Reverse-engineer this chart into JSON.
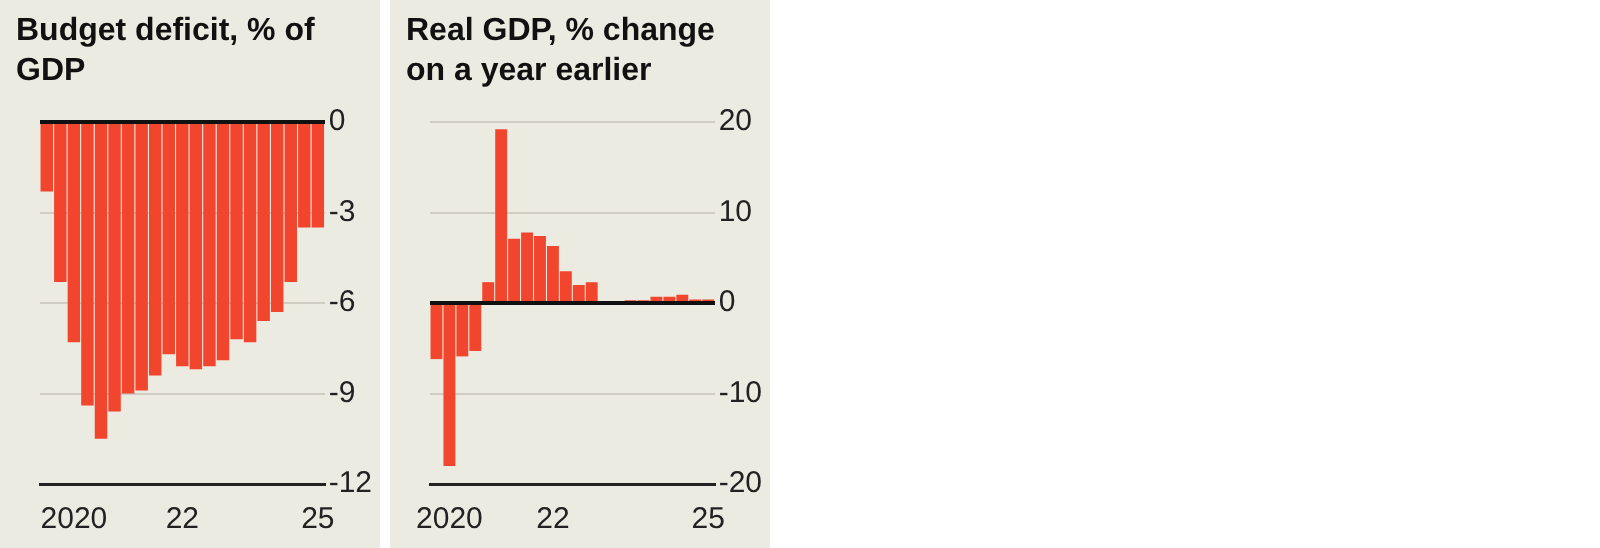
{
  "chart_data": [
    {
      "type": "bar",
      "title": "Budget deficit, % of GDP",
      "categories": [
        null,
        null,
        "2020",
        null,
        null,
        null,
        null,
        null,
        null,
        null,
        "22",
        null,
        null,
        null,
        null,
        null,
        null,
        null,
        null,
        null,
        "25"
      ],
      "values": [
        -2.3,
        -5.3,
        -7.3,
        -9.4,
        -10.5,
        -9.6,
        -9.0,
        -8.9,
        -8.4,
        -7.7,
        -8.1,
        -8.2,
        -8.1,
        -7.9,
        -7.2,
        -7.3,
        -6.6,
        -6.3,
        -5.3,
        -3.5,
        -3.5
      ],
      "color": "#f2452e",
      "ylim": [
        -12,
        0
      ],
      "yticks": [
        -12,
        -9,
        -6,
        -3,
        0
      ],
      "grid": "y"
    },
    {
      "type": "bar",
      "title": "Real GDP, % change on a year earlier",
      "categories": [
        null,
        "2020",
        null,
        null,
        null,
        null,
        null,
        null,
        null,
        "22",
        null,
        null,
        null,
        null,
        null,
        null,
        null,
        null,
        null,
        null,
        null,
        "25"
      ],
      "values": [
        -6.2,
        -18.0,
        -5.9,
        -5.3,
        2.3,
        19.2,
        7.1,
        7.8,
        7.4,
        6.3,
        3.5,
        2.0,
        2.3,
        null,
        null,
        0.3,
        0.3,
        0.7,
        0.7,
        0.9,
        0.4,
        0.4
      ],
      "color": "#f2452e",
      "ylim": [
        -20,
        20
      ],
      "yticks": [
        -20,
        -10,
        0,
        10,
        20
      ],
      "grid": "y"
    }
  ]
}
